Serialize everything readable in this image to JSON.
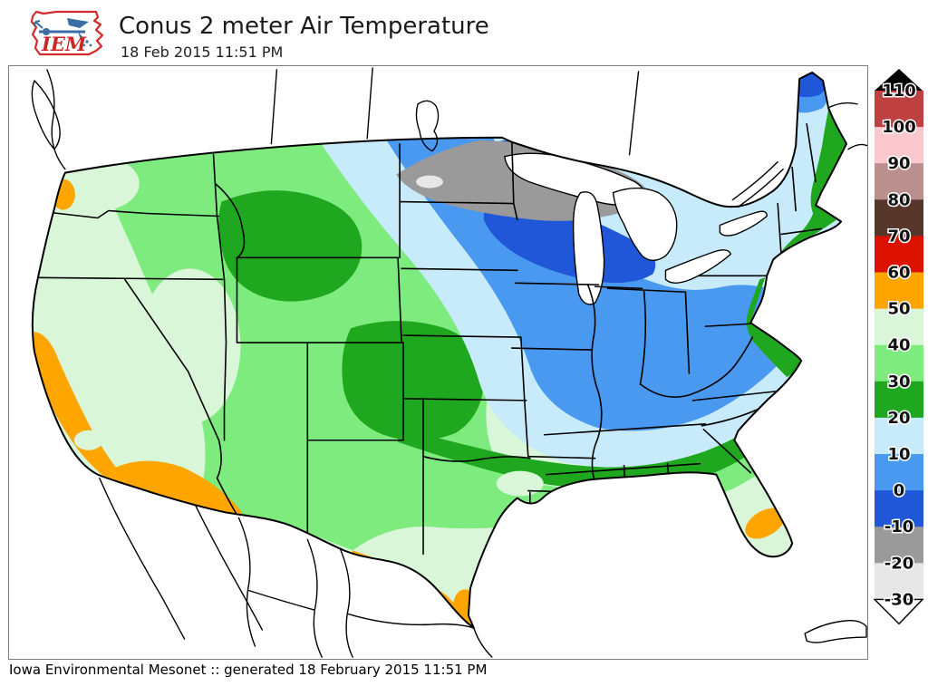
{
  "header": {
    "title": "Conus 2 meter Air Temperature",
    "subtitle": "18 Feb 2015 11:51 PM",
    "logo_text": "IEM"
  },
  "footer": {
    "credit": "Iowa Environmental Mesonet :: generated 18 February 2015 11:51 PM"
  },
  "colorbar": {
    "labels": [
      110,
      100,
      90,
      80,
      70,
      60,
      50,
      40,
      30,
      20,
      10,
      0,
      -10,
      -20,
      -30
    ],
    "segment_colors": [
      "#BE4040",
      "#FAC8CD",
      "#BC8F8F",
      "#57362C",
      "#DD1100",
      "#FFA500",
      "#D9F6D9",
      "#7DEB7D",
      "#1FA81F",
      "#C8EBFB",
      "#4A99F0",
      "#2057D8",
      "#9A9A9A",
      "#E7E7E7"
    ],
    "above_range_color": "#000000",
    "below_range_color": "#FFFFFF"
  },
  "map": {
    "palette": {
      "pale_green": "#D9F6D9",
      "light_green": "#7DEB7D",
      "green": "#1FA81F",
      "pale_cyan": "#C8EBFB",
      "blue": "#4A99F0",
      "dark_blue": "#2057D8",
      "gray": "#9A9A9A",
      "light_gray": "#E7E7E7",
      "orange": "#FFA500",
      "water": "#FFFFFF",
      "logo_red": "#D42A2A",
      "logo_blue": "#3A6EA5"
    },
    "regions": [
      {
        "area": "northern Minnesota pocket",
        "range_f": "-30 to -20",
        "palette": "light_gray"
      },
      {
        "area": "upper Midwest: northern Minnesota, northern Wisconsin, Upper Michigan",
        "range_f": "-20 to -10",
        "palette": "gray"
      },
      {
        "area": "southern Minnesota, Iowa, Wisconsin, Michigan, northern Maine",
        "range_f": "-10 to 0",
        "palette": "dark_blue"
      },
      {
        "area": "eastern Dakotas, Illinois, Indiana, Ohio, Kentucky, Pennsylvania, New York",
        "range_f": "0 to 10",
        "palette": "blue"
      },
      {
        "area": "plains arc through Kansas-Missouri, Tennessee, Virginia, interior New England",
        "range_f": "10 to 20",
        "palette": "pale_cyan"
      },
      {
        "area": "Montana, central plains, Deep South band, Atlantic coastal strip",
        "range_f": "20 to 30",
        "palette": "green"
      },
      {
        "area": "interior West, Gulf states band",
        "range_f": "30 to 40",
        "palette": "light_green"
      },
      {
        "area": "California, Great Basin, most of Texas, Florida peninsula",
        "range_f": "40 to 50",
        "palette": "pale_green"
      },
      {
        "area": "southern California coast, Arizona desert, Rio Grande valley, southwest Florida, Oregon coast spot",
        "range_f": "50 to 60",
        "palette": "orange"
      },
      {
        "area": "Canada, Mexico, oceans, Great Lakes",
        "range_f": "no data",
        "palette": "water"
      }
    ]
  }
}
